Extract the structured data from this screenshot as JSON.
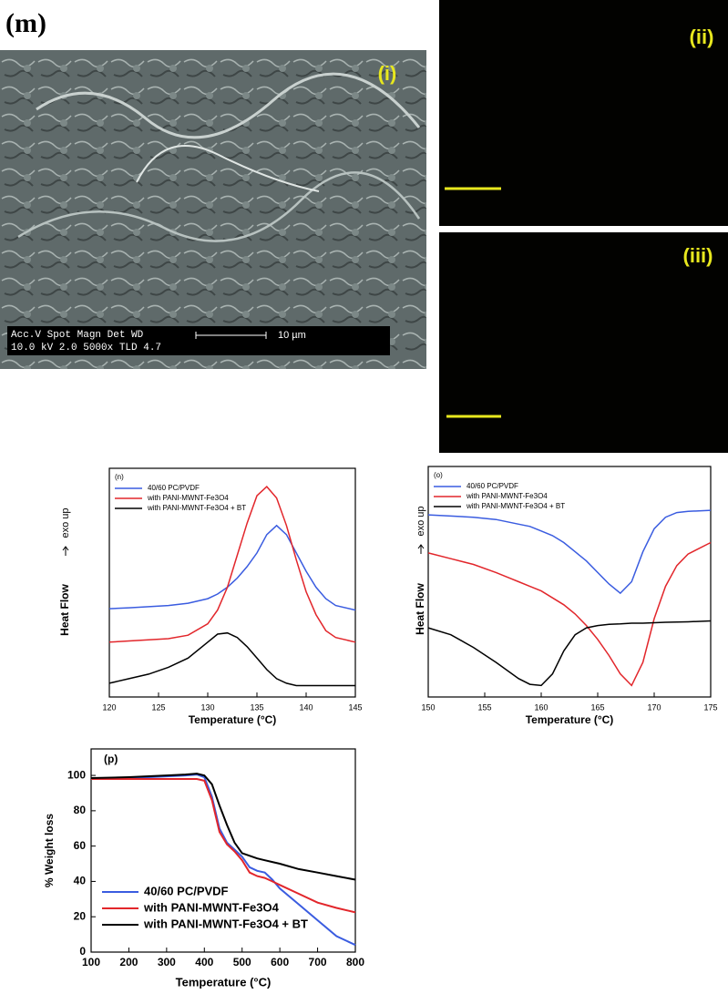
{
  "panels": {
    "figure_label": "(m)",
    "sem": {
      "label": "(i)",
      "info_top": "Acc.V  Spot Magn    Det  WD",
      "info_bottom": "10.0 kV 2.0   5000x    TLD  4.7",
      "scale": "10 µm"
    },
    "map_a": {
      "label": "(ii)"
    },
    "map_b": {
      "label": "(iii)"
    }
  },
  "chart_data": [
    {
      "type": "line",
      "title": "(n)",
      "xlabel": "Temperature (°C)",
      "ylabel": "Heat Flow",
      "ynote": "exo up",
      "x": [
        120,
        122,
        124,
        126,
        128,
        130,
        131,
        132,
        133,
        134,
        135,
        136,
        137,
        138,
        139,
        140,
        141,
        142,
        143,
        145
      ],
      "xlim": [
        120,
        145
      ],
      "xticks": [
        120,
        125,
        130,
        135,
        140,
        145
      ],
      "ylim": [
        0,
        100
      ],
      "legend": "upper-left",
      "series": [
        {
          "name": "40/60 PC/PVDF",
          "color": "#3a5ce0",
          "values": [
            38.6,
            39,
            39.5,
            40,
            41,
            43,
            45,
            48,
            52,
            57,
            63,
            71,
            75,
            71,
            63,
            55,
            48,
            43,
            40,
            38
          ]
        },
        {
          "name": "with PANI-MWNT-Fe3O4",
          "color": "#e2262b",
          "values": [
            24,
            24.5,
            25,
            25.5,
            27,
            32,
            38,
            48,
            62,
            76,
            88,
            92,
            87,
            75,
            60,
            46,
            36,
            29,
            26,
            24
          ]
        },
        {
          "name": "with PANI-MWNT-Fe3O4 + BT",
          "color": "#000000",
          "values": [
            6,
            8,
            10,
            13,
            17,
            24,
            27.5,
            28,
            26,
            22,
            17,
            12,
            8,
            6,
            5,
            5,
            5,
            5,
            5,
            5
          ]
        }
      ]
    },
    {
      "type": "line",
      "title": "(o)",
      "xlabel": "Temperature (°C)",
      "ylabel": "Heat Flow",
      "ynote": "exo up",
      "x": [
        150,
        152,
        154,
        156,
        158,
        159,
        160,
        161,
        162,
        163,
        164,
        165,
        166,
        167,
        168,
        169,
        170,
        171,
        172,
        173,
        175
      ],
      "xlim": [
        150,
        175
      ],
      "xticks": [
        150,
        155,
        160,
        165,
        170,
        175
      ],
      "ylim": [
        0,
        100
      ],
      "legend": "upper-left",
      "series": [
        {
          "name": "40/60 PC/PVDF",
          "color": "#3a5ce0",
          "values": [
            79,
            78.5,
            78,
            77,
            75,
            74,
            72,
            70,
            67,
            63,
            59,
            54,
            49,
            45,
            50,
            63,
            73,
            78,
            80,
            80.5,
            81
          ]
        },
        {
          "name": "with PANI-MWNT-Fe3O4",
          "color": "#e2262b",
          "values": [
            62.5,
            60,
            57.5,
            54,
            50,
            48,
            46,
            43,
            40,
            36,
            31,
            25,
            18,
            10,
            5,
            15,
            34,
            48,
            57,
            62,
            67
          ]
        },
        {
          "name": "with PANI-MWNT-Fe3O4 + BT",
          "color": "#000000",
          "values": [
            30,
            27,
            21.5,
            15,
            8,
            5.5,
            5,
            10,
            20,
            27,
            30,
            31,
            31.5,
            31.7,
            32,
            32,
            32.2,
            32.4,
            32.5,
            32.6,
            33
          ]
        }
      ]
    },
    {
      "type": "line",
      "title": "(p)",
      "xlabel": "Temperature (°C)",
      "ylabel": "% Weight loss",
      "x": [
        100,
        200,
        300,
        350,
        380,
        400,
        420,
        440,
        460,
        480,
        500,
        520,
        540,
        560,
        580,
        600,
        650,
        700,
        750,
        800
      ],
      "xlim": [
        100,
        800
      ],
      "xticks": [
        100,
        200,
        300,
        400,
        500,
        600,
        700,
        800
      ],
      "ylim": [
        0,
        115
      ],
      "yticks": [
        0,
        20,
        40,
        60,
        80,
        100
      ],
      "legend": "lower-left",
      "series": [
        {
          "name": "40/60 PC/PVDF",
          "color": "#3a5ce0",
          "values": [
            98,
            98.5,
            99.5,
            100,
            100.5,
            99,
            88,
            70,
            62,
            58,
            54,
            48,
            46,
            45,
            41,
            36,
            27,
            18,
            9,
            4
          ]
        },
        {
          "name": "with PANI-MWNT-Fe3O4",
          "color": "#e2262b",
          "values": [
            98,
            98,
            98,
            98,
            98,
            97,
            86,
            68,
            61,
            57,
            52,
            45,
            43,
            42,
            40,
            38,
            33,
            28,
            25,
            22.5
          ]
        },
        {
          "name": "with PANI-MWNT-Fe3O4 + BT",
          "color": "#000000",
          "values": [
            98.5,
            99,
            100,
            100.5,
            101,
            100,
            95,
            83,
            72,
            62,
            56,
            54.5,
            53,
            52,
            51,
            50,
            47,
            45,
            43,
            41
          ]
        }
      ]
    }
  ]
}
